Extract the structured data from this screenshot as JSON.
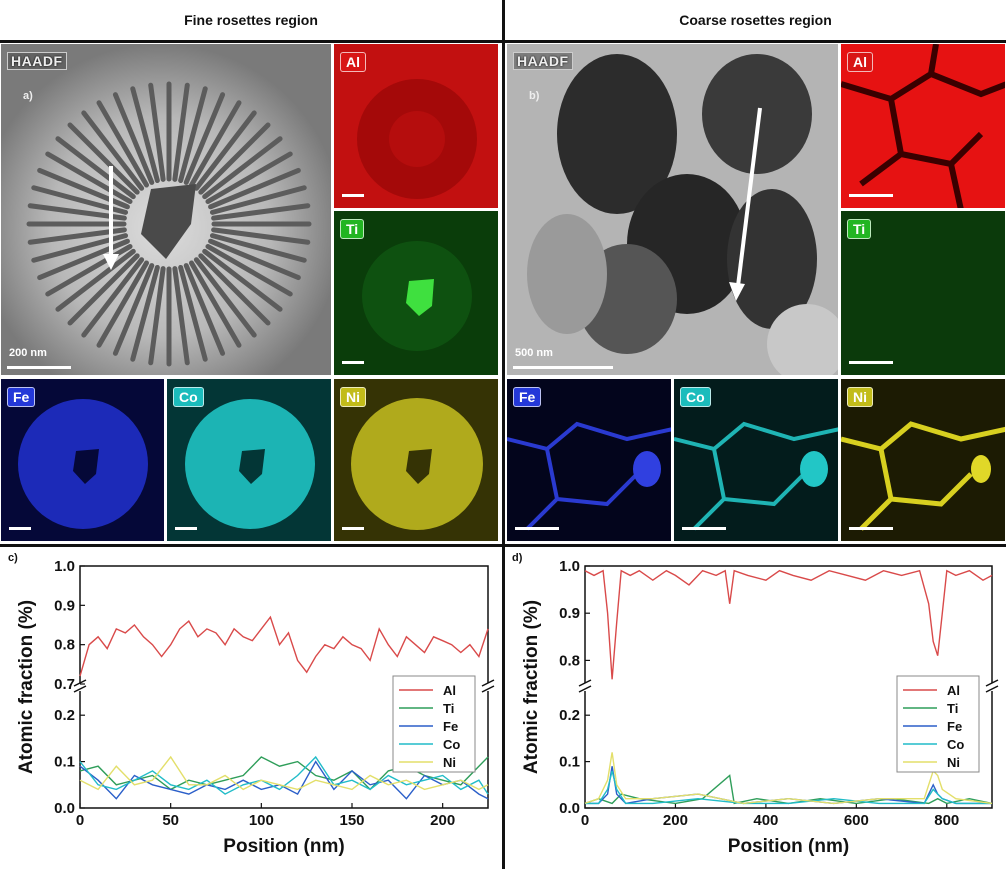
{
  "headers": {
    "left": "Fine rosettes region",
    "right": "Coarse rosettes region"
  },
  "panel_a": {
    "haadf": "HAADF",
    "label": "a)",
    "scale": "200 nm"
  },
  "panel_b": {
    "haadf": "HAADF",
    "label": "b)",
    "scale": "500 nm"
  },
  "maps": {
    "al": {
      "label": "Al",
      "color": "#e01010"
    },
    "ti": {
      "label": "Ti",
      "color": "#1fa81f"
    },
    "fe": {
      "label": "Fe",
      "color": "#1e2fd8"
    },
    "co": {
      "label": "Co",
      "color": "#18c6c6"
    },
    "ni": {
      "label": "Ni",
      "color": "#c8c21a"
    }
  },
  "plot_labels": {
    "c": "c)",
    "d": "d)"
  },
  "chart_data": [
    {
      "type": "line",
      "panel": "c)",
      "xlabel": "Position (nm)",
      "ylabel": "Atomic fraction (%)",
      "xlim": [
        0,
        225
      ],
      "xticks": [
        "0",
        "50",
        "100",
        "150",
        "200"
      ],
      "ylim_upper": [
        0.7,
        1.0
      ],
      "yticks_upper": [
        "0.7",
        "0.8",
        "0.9",
        "1.0"
      ],
      "ylim_lower": [
        0.0,
        0.25
      ],
      "yticks_lower": [
        "0.0",
        "0.1",
        "0.2"
      ],
      "legend": [
        "Al",
        "Ti",
        "Fe",
        "Co",
        "Ni"
      ],
      "series": [
        {
          "name": "Al",
          "color": "#d94a4a",
          "x": [
            0,
            5,
            10,
            15,
            20,
            25,
            30,
            35,
            40,
            45,
            50,
            55,
            60,
            65,
            70,
            75,
            80,
            85,
            90,
            95,
            100,
            105,
            110,
            115,
            120,
            125,
            130,
            135,
            140,
            145,
            150,
            155,
            160,
            165,
            170,
            175,
            180,
            185,
            190,
            195,
            200,
            205,
            210,
            215,
            220,
            225
          ],
          "values": [
            0.72,
            0.8,
            0.82,
            0.79,
            0.84,
            0.83,
            0.85,
            0.82,
            0.8,
            0.77,
            0.8,
            0.84,
            0.86,
            0.82,
            0.84,
            0.83,
            0.8,
            0.84,
            0.82,
            0.81,
            0.84,
            0.87,
            0.8,
            0.83,
            0.76,
            0.73,
            0.77,
            0.8,
            0.79,
            0.82,
            0.8,
            0.79,
            0.76,
            0.84,
            0.8,
            0.77,
            0.82,
            0.8,
            0.78,
            0.82,
            0.81,
            0.8,
            0.78,
            0.8,
            0.77,
            0.84
          ]
        },
        {
          "name": "Ti",
          "color": "#2f9e5a",
          "x": [
            0,
            10,
            20,
            30,
            40,
            50,
            60,
            70,
            80,
            90,
            100,
            110,
            120,
            130,
            140,
            150,
            160,
            170,
            180,
            190,
            200,
            210,
            220,
            225
          ],
          "values": [
            0.08,
            0.09,
            0.05,
            0.06,
            0.07,
            0.04,
            0.06,
            0.05,
            0.06,
            0.07,
            0.11,
            0.09,
            0.1,
            0.07,
            0.06,
            0.08,
            0.04,
            0.08,
            0.09,
            0.07,
            0.06,
            0.05,
            0.09,
            0.11
          ]
        },
        {
          "name": "Fe",
          "color": "#2b5fc9",
          "x": [
            0,
            10,
            20,
            30,
            40,
            50,
            60,
            70,
            80,
            90,
            100,
            110,
            120,
            130,
            140,
            150,
            160,
            170,
            180,
            190,
            200,
            210,
            220,
            225
          ],
          "values": [
            0.09,
            0.06,
            0.02,
            0.07,
            0.05,
            0.04,
            0.03,
            0.05,
            0.04,
            0.06,
            0.04,
            0.05,
            0.03,
            0.1,
            0.04,
            0.08,
            0.05,
            0.06,
            0.02,
            0.07,
            0.05,
            0.06,
            0.03,
            0.02
          ]
        },
        {
          "name": "Co",
          "color": "#21bcc8",
          "x": [
            0,
            10,
            20,
            30,
            40,
            50,
            60,
            70,
            80,
            90,
            100,
            110,
            120,
            130,
            140,
            150,
            160,
            170,
            180,
            190,
            200,
            210,
            220,
            225
          ],
          "values": [
            0.1,
            0.05,
            0.04,
            0.06,
            0.08,
            0.05,
            0.04,
            0.06,
            0.03,
            0.05,
            0.06,
            0.04,
            0.07,
            0.11,
            0.05,
            0.06,
            0.04,
            0.07,
            0.05,
            0.06,
            0.07,
            0.04,
            0.06,
            0.03
          ]
        },
        {
          "name": "Ni",
          "color": "#e3df6a",
          "x": [
            0,
            10,
            20,
            30,
            40,
            50,
            60,
            70,
            80,
            90,
            100,
            110,
            120,
            130,
            140,
            150,
            160,
            170,
            180,
            190,
            200,
            210,
            220,
            225
          ],
          "values": [
            0.06,
            0.04,
            0.09,
            0.05,
            0.06,
            0.11,
            0.05,
            0.05,
            0.07,
            0.04,
            0.06,
            0.05,
            0.04,
            0.06,
            0.05,
            0.04,
            0.07,
            0.05,
            0.06,
            0.04,
            0.05,
            0.06,
            0.04,
            0.05
          ]
        }
      ]
    },
    {
      "type": "line",
      "panel": "d)",
      "xlabel": "Position (nm)",
      "ylabel": "Atomic fraction (%)",
      "xlim": [
        0,
        900
      ],
      "xticks": [
        "0",
        "200",
        "400",
        "600",
        "800"
      ],
      "ylim_upper": [
        0.75,
        1.0
      ],
      "yticks_upper": [
        "0.8",
        "0.9",
        "1.0"
      ],
      "ylim_lower": [
        0.0,
        0.25
      ],
      "yticks_lower": [
        "0.0",
        "0.1",
        "0.2"
      ],
      "legend": [
        "Al",
        "Ti",
        "Fe",
        "Co",
        "Ni"
      ],
      "series": [
        {
          "name": "Al",
          "color": "#d94a4a",
          "x": [
            0,
            20,
            40,
            50,
            60,
            70,
            80,
            100,
            120,
            150,
            180,
            200,
            230,
            260,
            290,
            310,
            320,
            330,
            360,
            400,
            430,
            460,
            500,
            540,
            580,
            620,
            660,
            700,
            740,
            760,
            770,
            780,
            790,
            800,
            820,
            850,
            880,
            900
          ],
          "values": [
            0.99,
            0.98,
            0.99,
            0.9,
            0.76,
            0.88,
            0.99,
            0.98,
            0.99,
            0.97,
            0.99,
            0.98,
            0.96,
            0.99,
            0.98,
            0.99,
            0.92,
            0.99,
            0.98,
            0.97,
            0.99,
            0.98,
            0.97,
            0.99,
            0.98,
            0.97,
            0.99,
            0.98,
            0.99,
            0.92,
            0.84,
            0.81,
            0.9,
            0.99,
            0.98,
            0.99,
            0.97,
            0.98
          ]
        },
        {
          "name": "Ti",
          "color": "#2f9e5a",
          "x": [
            0,
            30,
            60,
            80,
            120,
            200,
            260,
            320,
            330,
            380,
            450,
            520,
            600,
            680,
            760,
            780,
            800,
            850,
            900
          ],
          "values": [
            0.01,
            0.02,
            0.01,
            0.03,
            0.02,
            0.01,
            0.02,
            0.07,
            0.01,
            0.02,
            0.01,
            0.02,
            0.01,
            0.02,
            0.01,
            0.02,
            0.01,
            0.02,
            0.01
          ]
        },
        {
          "name": "Fe",
          "color": "#2b5fc9",
          "x": [
            0,
            30,
            50,
            60,
            70,
            90,
            150,
            250,
            350,
            450,
            550,
            650,
            750,
            770,
            780,
            790,
            820,
            900
          ],
          "values": [
            0.01,
            0.01,
            0.03,
            0.09,
            0.03,
            0.01,
            0.02,
            0.03,
            0.01,
            0.02,
            0.01,
            0.02,
            0.01,
            0.05,
            0.03,
            0.02,
            0.01,
            0.01
          ]
        },
        {
          "name": "Co",
          "color": "#21bcc8",
          "x": [
            0,
            30,
            50,
            60,
            70,
            90,
            150,
            250,
            350,
            450,
            550,
            650,
            750,
            770,
            780,
            790,
            820,
            900
          ],
          "values": [
            0.01,
            0.01,
            0.04,
            0.08,
            0.04,
            0.01,
            0.01,
            0.02,
            0.01,
            0.01,
            0.02,
            0.01,
            0.01,
            0.04,
            0.03,
            0.02,
            0.01,
            0.01
          ]
        },
        {
          "name": "Ni",
          "color": "#e3df6a",
          "x": [
            0,
            30,
            50,
            60,
            70,
            90,
            150,
            250,
            350,
            450,
            550,
            650,
            750,
            770,
            780,
            790,
            820,
            900
          ],
          "values": [
            0.01,
            0.02,
            0.06,
            0.12,
            0.05,
            0.02,
            0.02,
            0.03,
            0.01,
            0.02,
            0.01,
            0.02,
            0.02,
            0.08,
            0.07,
            0.04,
            0.02,
            0.01
          ]
        }
      ]
    }
  ]
}
